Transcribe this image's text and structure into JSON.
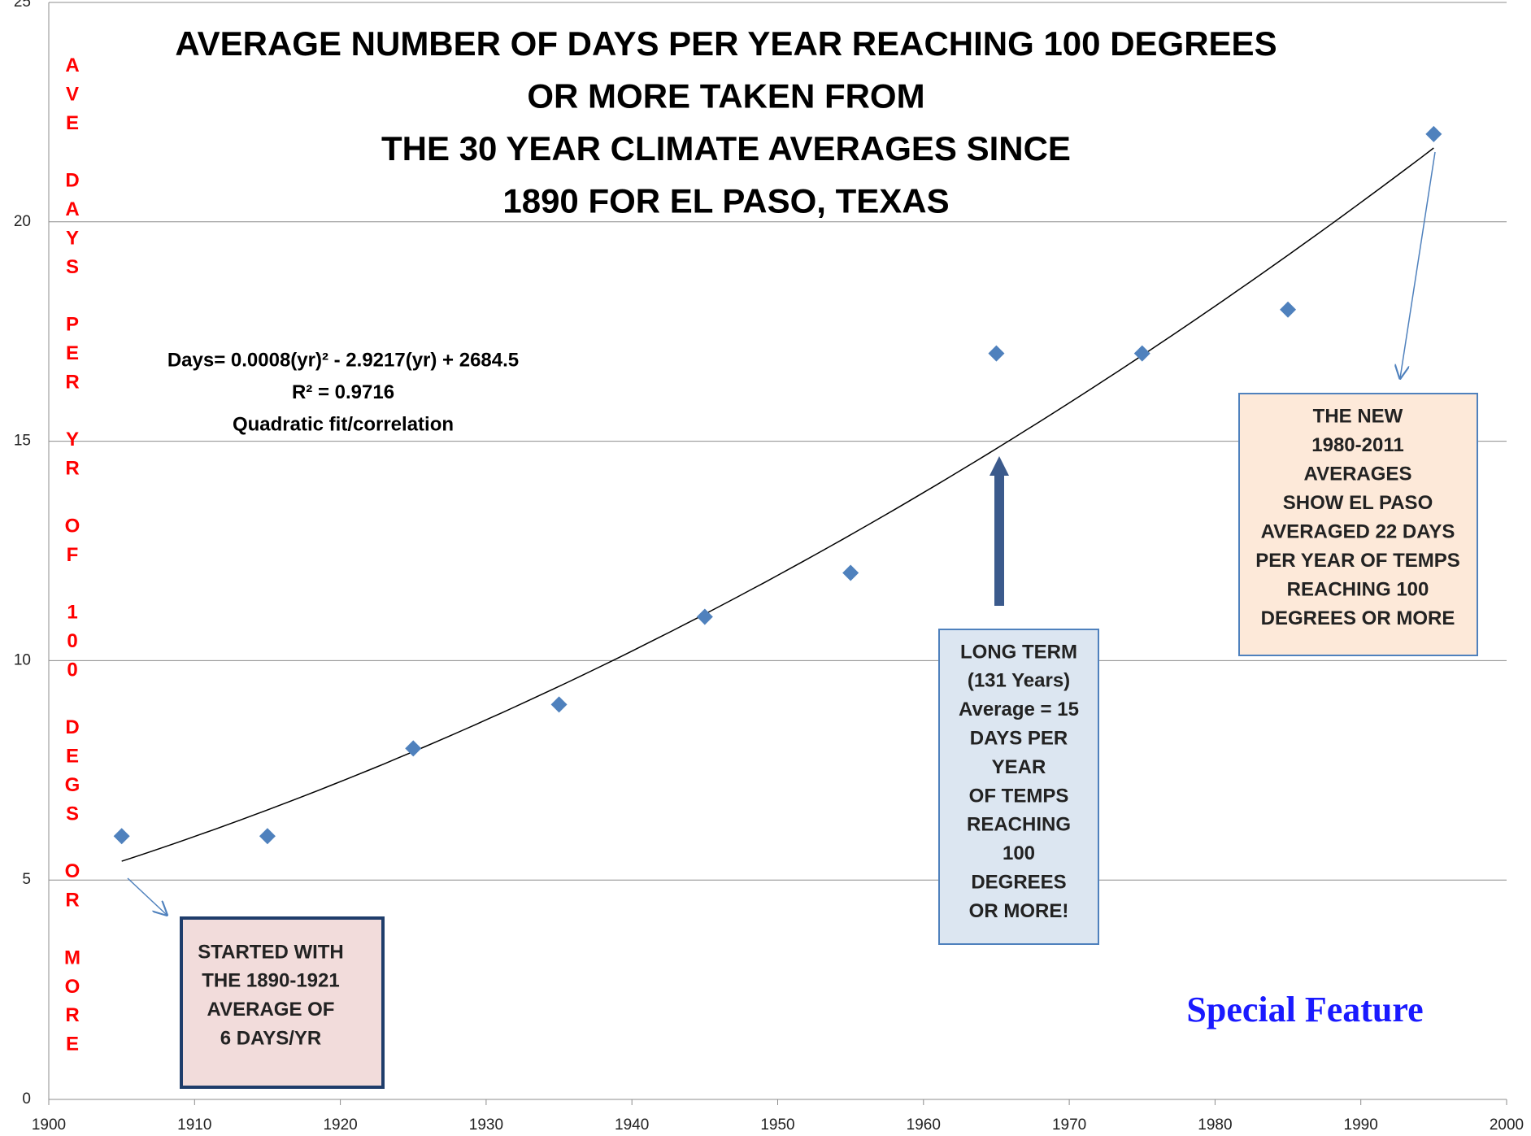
{
  "chart_data": {
    "type": "scatter",
    "title": [
      "AVERAGE NUMBER OF DAYS PER YEAR REACHING 100 DEGREES",
      "OR MORE TAKEN FROM",
      "THE 30 YEAR CLIMATE AVERAGES SINCE",
      "1890 FOR EL PASO, TEXAS"
    ],
    "y_label": "AVE DAYS PER YR OF 100 DEGS OR MORE",
    "x": [
      1905,
      1915,
      1925,
      1935,
      1945,
      1955,
      1965,
      1975,
      1985,
      1995
    ],
    "values": [
      6,
      6,
      8,
      9,
      11,
      12,
      17,
      17,
      18,
      22
    ],
    "color": "#4f81bd",
    "trendline": "polynomial-2",
    "xlim": [
      1900,
      2000
    ],
    "xticks": [
      1900,
      1910,
      1920,
      1930,
      1940,
      1950,
      1960,
      1970,
      1980,
      1990,
      2000
    ],
    "ylim": [
      0,
      25
    ],
    "yticks": [
      0,
      5,
      10,
      15,
      20,
      25
    ],
    "grid": true,
    "equation": [
      "Days= 0.0008(yr)² - 2.9217(yr) + 2684.5",
      "R² = 0.9716",
      "Quadratic fit/correlation"
    ],
    "annotations": [
      [
        "STARTED WITH",
        "THE 1890-1921",
        "AVERAGE OF",
        "6 DAYS/YR"
      ],
      [
        "LONG TERM",
        "(131 Years)",
        "Average = 15",
        "DAYS PER",
        "YEAR",
        "OF TEMPS",
        "REACHING",
        "100",
        "DEGREES",
        "OR MORE!"
      ],
      [
        "THE NEW",
        "1980-2011",
        "AVERAGES",
        "SHOW EL PASO",
        "AVERAGED 22 DAYS",
        "PER YEAR OF TEMPS",
        "REACHING 100",
        "DEGREES OR MORE"
      ]
    ],
    "watermark": "Special Feature"
  }
}
